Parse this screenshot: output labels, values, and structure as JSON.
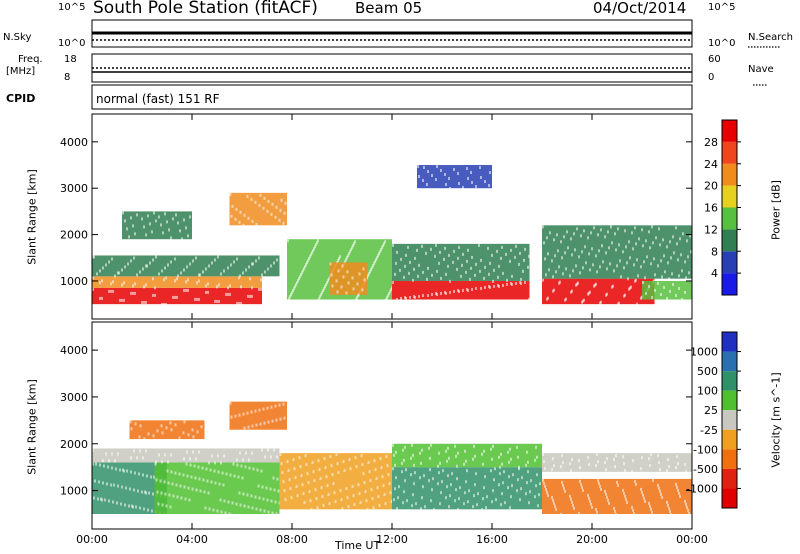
{
  "header": {
    "station": "South Pole Station (fitACF)",
    "beam": "Beam 05",
    "date": "04/Oct/2014"
  },
  "status_panel": {
    "nsky_label": "N.Sky",
    "nsearch_label": "N.Search",
    "noise_ticks": [
      "10^5",
      "10^0"
    ],
    "freq_label_line1": "Freq.",
    "freq_label_line2": "[MHz]",
    "freq_ticks": [
      "18",
      "8"
    ],
    "nave_label": "Nave",
    "nave_ticks": [
      "60",
      "0"
    ],
    "cpid_label": "CPID",
    "mode_text": "normal (fast) 151 RF"
  },
  "colors": {
    "power_scale": [
      "#1a1ae6",
      "#2840b4",
      "#2f7f52",
      "#58c040",
      "#e6d020",
      "#f08c1e",
      "#f0461e",
      "#e60000"
    ],
    "velocity_scale": [
      "#2030c0",
      "#2a6fb0",
      "#30906a",
      "#50c030",
      "#c8c8c0",
      "#f0a020",
      "#f07010",
      "#e02010",
      "#e00000"
    ]
  },
  "chart_data": [
    {
      "type": "heatmap",
      "panel": "power",
      "x_ticks": [
        "00:00",
        "04:00",
        "08:00",
        "12:00",
        "16:00",
        "20:00",
        "00:00"
      ],
      "xlim": [
        "00:00",
        "24:00"
      ],
      "ylabel": "Slant Range [km]",
      "ylim": [
        180,
        4600
      ],
      "y_ticks": [
        1000,
        2000,
        3000,
        4000
      ],
      "colorbar": {
        "label": "Power [dB]",
        "ticks": [
          4,
          8,
          12,
          16,
          20,
          24,
          28
        ]
      },
      "regions": [
        {
          "t0": 0.0,
          "t1": 6.8,
          "r0": 500,
          "r1": 850,
          "v": 29
        },
        {
          "t0": 0.0,
          "t1": 6.8,
          "r0": 850,
          "r1": 1100,
          "v": 20
        },
        {
          "t0": 0.0,
          "t1": 7.5,
          "r0": 1100,
          "r1": 1550,
          "v": 11
        },
        {
          "t0": 1.2,
          "t1": 4.0,
          "r0": 1900,
          "r1": 2500,
          "v": 8
        },
        {
          "t0": 5.5,
          "t1": 7.8,
          "r0": 2200,
          "r1": 2900,
          "v": 20
        },
        {
          "t0": 7.8,
          "t1": 12.0,
          "r0": 600,
          "r1": 1900,
          "v": 14
        },
        {
          "t0": 9.5,
          "t1": 11.0,
          "r0": 700,
          "r1": 1400,
          "v": 22
        },
        {
          "t0": 12.0,
          "t1": 17.5,
          "r0": 600,
          "r1": 1000,
          "v": 28
        },
        {
          "t0": 12.0,
          "t1": 17.5,
          "r0": 1000,
          "r1": 1800,
          "v": 10
        },
        {
          "t0": 18.0,
          "t1": 22.5,
          "r0": 500,
          "r1": 1050,
          "v": 29
        },
        {
          "t0": 18.0,
          "t1": 24.0,
          "r0": 1050,
          "r1": 2200,
          "v": 8
        },
        {
          "t0": 22.0,
          "t1": 24.0,
          "r0": 600,
          "r1": 1000,
          "v": 14
        },
        {
          "t0": 13.0,
          "t1": 16.0,
          "r0": 3000,
          "r1": 3500,
          "v": 7
        }
      ]
    },
    {
      "type": "heatmap",
      "panel": "velocity",
      "x_ticks": [
        "00:00",
        "04:00",
        "08:00",
        "12:00",
        "16:00",
        "20:00",
        "00:00"
      ],
      "xlim": [
        "00:00",
        "24:00"
      ],
      "xlabel": "Time UT",
      "ylabel": "Slant Range [km]",
      "ylim": [
        180,
        4600
      ],
      "y_ticks": [
        1000,
        2000,
        3000,
        4000
      ],
      "colorbar": {
        "label": "Velocity [m s^-1]",
        "ticks": [
          1000,
          500,
          100,
          25,
          -25,
          -100,
          -500,
          -1000
        ]
      },
      "regions": [
        {
          "t0": 0.0,
          "t1": 3.0,
          "r0": 500,
          "r1": 1600,
          "v": 300
        },
        {
          "t0": 2.5,
          "t1": 7.5,
          "r0": 500,
          "r1": 1600,
          "v": 60
        },
        {
          "t0": 0.0,
          "t1": 7.5,
          "r0": 1600,
          "r1": 1900,
          "v": 0
        },
        {
          "t0": 1.5,
          "t1": 4.5,
          "r0": 2100,
          "r1": 2500,
          "v": -200
        },
        {
          "t0": 5.5,
          "t1": 7.8,
          "r0": 2300,
          "r1": 2900,
          "v": -200
        },
        {
          "t0": 7.5,
          "t1": 12.0,
          "r0": 600,
          "r1": 1800,
          "v": -60
        },
        {
          "t0": 12.0,
          "t1": 18.0,
          "r0": 600,
          "r1": 1500,
          "v": 200
        },
        {
          "t0": 12.0,
          "t1": 18.0,
          "r0": 1500,
          "r1": 2000,
          "v": 30
        },
        {
          "t0": 18.0,
          "t1": 24.0,
          "r0": 500,
          "r1": 1250,
          "v": -200
        },
        {
          "t0": 18.0,
          "t1": 24.0,
          "r0": 1400,
          "r1": 1800,
          "v": 0
        }
      ]
    }
  ]
}
